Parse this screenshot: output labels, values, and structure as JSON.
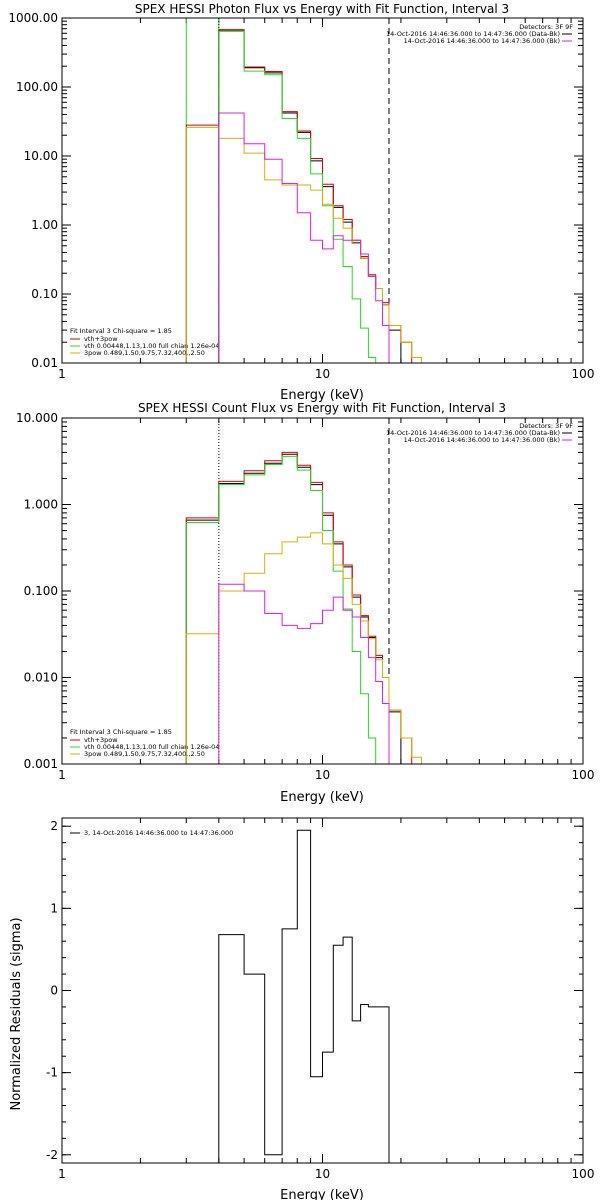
{
  "colors": {
    "black": "#000000",
    "red": "#dd0000",
    "green": "#22dd22",
    "magenta": "#dd22dd",
    "gold": "#d8b000"
  },
  "chart_data": [
    {
      "type": "line",
      "title": "SPEX HESSI Photon Flux vs Energy with Fit Function, Interval 3",
      "xlabel": "Energy (keV)",
      "ylabel": "",
      "xscale": "log",
      "yscale": "log",
      "xlim": [
        1,
        100
      ],
      "ylim": [
        0.01,
        1000
      ],
      "x_ticks": [
        "1",
        "10",
        "100"
      ],
      "y_ticks": [
        "0.01",
        "0.10",
        "1.00",
        "10.00",
        "100.00",
        "1000.00"
      ],
      "header": [
        "Detectors: 3F 9F",
        "14-Oct-2016 14:46:36.000 to 14:47:36.000 (Data-Bk)",
        "14-Oct-2016 14:46:36.000 to 14:47:36.000 (Bk)"
      ],
      "header_colors": [
        "",
        "#000000",
        "#dd22dd"
      ],
      "fit_info": "Fit Interval 3   Chi-square = 1.85",
      "legend": [
        {
          "label": "vth+3pow",
          "color": "#dd0000"
        },
        {
          "label": "vth 0.00448,1.13,1.00  full chian 1.26e-04",
          "color": "#22dd22"
        },
        {
          "label": "3pow 0.489,1.50,9.75,7.32,400.,2.50",
          "color": "#d8b000"
        }
      ],
      "vlines": [
        {
          "x": 3,
          "style": "solid",
          "color": "#22dd22"
        },
        {
          "x": 4,
          "style": "solid",
          "color": "#22dd22"
        },
        {
          "x": 4,
          "style": "dotted",
          "color": "#000000"
        },
        {
          "x": 18,
          "style": "dashed",
          "color": "#000000"
        }
      ],
      "bin_edges": [
        3,
        4,
        5,
        6,
        7,
        8,
        9,
        10,
        11,
        12,
        13,
        14,
        15,
        16,
        17,
        18,
        20,
        22,
        24
      ],
      "series": [
        {
          "name": "Data-Bk",
          "color": "#000000",
          "values": [
            null,
            650,
            190,
            160,
            42,
            22,
            8.5,
            3.6,
            1.8,
            1.1,
            0.55,
            0.33,
            0.18,
            0.12,
            0.07,
            0.03,
            null,
            null
          ]
        },
        {
          "name": "vth+3pow",
          "color": "#dd0000",
          "values": [
            28,
            680,
            195,
            168,
            44,
            23,
            9.2,
            3.9,
            1.9,
            1.2,
            0.6,
            0.35,
            0.19,
            0.12,
            0.075,
            0.035,
            0.02,
            null
          ]
        },
        {
          "name": "vth",
          "color": "#22dd22",
          "values": [
            null,
            640,
            170,
            150,
            35,
            18,
            5.5,
            1.9,
            0.62,
            0.25,
            0.085,
            0.032,
            0.012,
            null,
            null,
            null,
            null,
            null
          ]
        },
        {
          "name": "3pow",
          "color": "#d8b000",
          "values": [
            26,
            18,
            11,
            4.5,
            3.8,
            3.8,
            3.2,
            2.0,
            1.25,
            0.9,
            0.54,
            0.33,
            0.18,
            0.12,
            0.07,
            0.035,
            0.02,
            0.012
          ]
        },
        {
          "name": "Bk",
          "color": "#dd22dd",
          "values": [
            null,
            42,
            15,
            9,
            4,
            1.5,
            0.6,
            0.45,
            0.7,
            0.6,
            0.6,
            0.38,
            0.18,
            0.08,
            0.035,
            null,
            null,
            null
          ]
        }
      ]
    },
    {
      "type": "line",
      "title": "SPEX HESSI Count Flux vs Energy with Fit Function, Interval 3",
      "xlabel": "Energy (keV)",
      "ylabel": "",
      "xscale": "log",
      "yscale": "log",
      "xlim": [
        1,
        100
      ],
      "ylim": [
        0.001,
        10
      ],
      "x_ticks": [
        "1",
        "10",
        "100"
      ],
      "y_ticks": [
        "0.001",
        "0.010",
        "0.100",
        "1.000",
        "10.000"
      ],
      "header": [
        "Detectors: 3F 9F",
        "14-Oct-2016 14:46:36.000 to 14:47:36.000 (Data-Bk)",
        "14-Oct-2016 14:46:36.000 to 14:47:36.000 (Bk)"
      ],
      "header_colors": [
        "",
        "#000000",
        "#dd22dd"
      ],
      "fit_info": "Fit Interval 3   Chi-square = 1.85",
      "legend": [
        {
          "label": "vth+3pow",
          "color": "#dd0000"
        },
        {
          "label": "vth 0.00448,1.13,1.00  full chian 1.26e-04",
          "color": "#22dd22"
        },
        {
          "label": "3pow 0.489,1.50,9.75,7.32,400.,2.50",
          "color": "#d8b000"
        }
      ],
      "vlines": [
        {
          "x": 4,
          "style": "dotted",
          "color": "#000000"
        },
        {
          "x": 18,
          "style": "dashed",
          "color": "#000000"
        }
      ],
      "bin_edges": [
        3,
        4,
        5,
        6,
        7,
        8,
        9,
        10,
        11,
        12,
        13,
        14,
        15,
        16,
        17,
        18,
        20,
        22,
        24
      ],
      "series": [
        {
          "name": "Data-Bk",
          "color": "#000000",
          "values": [
            0.66,
            1.75,
            2.3,
            3.0,
            3.8,
            2.7,
            1.7,
            0.75,
            0.35,
            0.19,
            0.085,
            0.05,
            0.029,
            0.017,
            0.01,
            0.004,
            null,
            null
          ]
        },
        {
          "name": "vth+3pow",
          "color": "#dd0000",
          "values": [
            0.7,
            1.85,
            2.45,
            3.2,
            4.0,
            2.85,
            1.8,
            0.8,
            0.37,
            0.2,
            0.09,
            0.052,
            0.03,
            0.018,
            0.01,
            0.0042,
            0.002,
            null
          ]
        },
        {
          "name": "vth",
          "color": "#22dd22",
          "values": [
            0.62,
            1.7,
            2.2,
            2.9,
            3.6,
            2.5,
            1.45,
            0.5,
            0.17,
            0.062,
            0.02,
            0.0065,
            0.002,
            null,
            null,
            null,
            null,
            null
          ]
        },
        {
          "name": "3pow",
          "color": "#d8b000",
          "values": [
            0.032,
            0.1,
            0.16,
            0.27,
            0.37,
            0.42,
            0.47,
            0.35,
            0.2,
            0.14,
            0.07,
            0.045,
            0.028,
            0.016,
            0.01,
            0.0042,
            0.002,
            0.0012
          ]
        },
        {
          "name": "Bk",
          "color": "#dd22dd",
          "values": [
            null,
            0.12,
            0.1,
            0.055,
            0.04,
            0.037,
            0.042,
            0.06,
            0.085,
            0.06,
            0.05,
            0.029,
            0.017,
            0.009,
            0.005,
            null,
            null,
            null
          ]
        }
      ]
    },
    {
      "type": "line",
      "title": "",
      "xlabel": "Energy (keV)",
      "ylabel": "Normalized Residuals (sigma)",
      "xscale": "log",
      "yscale": "linear",
      "xlim": [
        1,
        100
      ],
      "ylim": [
        -2.1,
        2.1
      ],
      "x_ticks": [
        "1",
        "10",
        "100"
      ],
      "y_ticks": [
        "-2",
        "-1",
        "0",
        "1",
        "2"
      ],
      "legend": [
        {
          "label": "3, 14-Oct-2016 14:46:36.000 to 14:47:36.000",
          "color": "#000000"
        }
      ],
      "bin_edges": [
        4,
        5,
        6,
        7,
        8,
        9,
        10,
        11,
        12,
        13,
        14,
        15,
        16,
        17,
        18
      ],
      "series": [
        {
          "name": "",
          "color": "#000000",
          "values": [
            0.68,
            0.2,
            -2.0,
            0.75,
            1.95,
            -1.05,
            -0.75,
            0.55,
            0.65,
            -0.37,
            -0.17,
            -0.2,
            -0.2,
            -0.2
          ]
        }
      ]
    }
  ]
}
